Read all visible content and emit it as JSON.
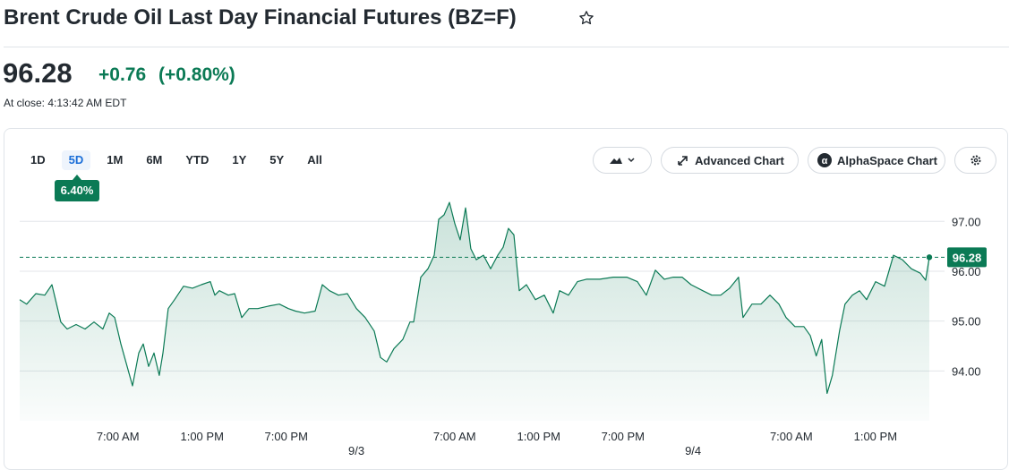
{
  "header": {
    "title": "Brent Crude Oil Last Day Financial Futures (BZ=F)"
  },
  "quote": {
    "price": "96.28",
    "change": "+0.76",
    "change_percent": "(+0.80%)",
    "close_time": "At close: 4:13:42 AM EDT"
  },
  "range_buttons": [
    "1D",
    "5D",
    "1M",
    "6M",
    "YTD",
    "1Y",
    "5Y",
    "All"
  ],
  "selected_range_index": 1,
  "range_change": "6.40%",
  "toolbar": {
    "advanced": "Advanced Chart",
    "alphaspace": "AlphaSpace Chart"
  },
  "chart_data": {
    "type": "line",
    "x": [
      0,
      0.5,
      1.15,
      1.79,
      2.3,
      2.55,
      2.93,
      3.38,
      4.02,
      4.66,
      5.3,
      5.93,
      6.38,
      6.77,
      7.21,
      7.66,
      8.04,
      8.49,
      8.81,
      9.19,
      9.57,
      9.95,
      10.21,
      10.59,
      11.04,
      11.68,
      12.32,
      12.95,
      13.59,
      13.91,
      14.23,
      14.87,
      15.32,
      15.83,
      16.34,
      16.97,
      17.74,
      18.51,
      19.15,
      19.66,
      20.3,
      21.06,
      21.57,
      22.08,
      22.72,
      23.36,
      24.0,
      24.63,
      25.27,
      25.72,
      26.16,
      26.68,
      27.31,
      27.82,
      28.08,
      28.59,
      29.1,
      29.55,
      29.87,
      30.25,
      30.63,
      31.02,
      31.4,
      31.78,
      32.16,
      32.55,
      33.06,
      33.57,
      34.08,
      34.46,
      34.84,
      35.23,
      35.61,
      36.12,
      36.76,
      37.4,
      38.03,
      38.48,
      39.12,
      39.76,
      40.4,
      41.35,
      42.31,
      43.27,
      44.03,
      44.67,
      45.31,
      45.95,
      46.59,
      47.22,
      47.86,
      48.69,
      49.33,
      49.97,
      50.61,
      51.24,
      51.56,
      52.2,
      52.84,
      53.48,
      54.12,
      54.63,
      55.26,
      55.9,
      56.35,
      56.78,
      57.17,
      57.55,
      57.93,
      58.44,
      58.83,
      59.35,
      59.86,
      60.37,
      61.01,
      61.65,
      62.29,
      62.92,
      63.56,
      64.2,
      64.58,
      64.84
    ],
    "series": [
      {
        "color": "#0b7a55",
        "values": [
          95.43,
          95.34,
          95.55,
          95.52,
          95.73,
          95.43,
          94.98,
          94.84,
          94.93,
          94.84,
          94.98,
          94.84,
          95.16,
          95.07,
          94.54,
          94.09,
          93.7,
          94.36,
          94.54,
          94.09,
          94.36,
          93.91,
          94.36,
          95.25,
          95.43,
          95.7,
          95.66,
          95.73,
          95.79,
          95.52,
          95.61,
          95.52,
          95.55,
          95.07,
          95.25,
          95.25,
          95.3,
          95.34,
          95.25,
          95.2,
          95.16,
          95.2,
          95.73,
          95.61,
          95.52,
          95.55,
          95.25,
          95.07,
          94.8,
          94.27,
          94.18,
          94.45,
          94.63,
          94.98,
          94.98,
          95.88,
          96.05,
          96.32,
          97.04,
          97.13,
          97.38,
          96.95,
          96.63,
          97.27,
          96.45,
          96.23,
          96.32,
          96.05,
          96.32,
          96.48,
          96.86,
          96.73,
          95.61,
          95.73,
          95.43,
          95.52,
          95.16,
          95.61,
          95.52,
          95.79,
          95.84,
          95.84,
          95.88,
          95.88,
          95.79,
          95.52,
          96.02,
          95.84,
          95.88,
          95.88,
          95.73,
          95.61,
          95.52,
          95.52,
          95.66,
          95.88,
          95.07,
          95.34,
          95.34,
          95.52,
          95.34,
          95.07,
          94.89,
          94.89,
          94.71,
          94.3,
          94.63,
          93.55,
          93.91,
          94.8,
          95.34,
          95.52,
          95.61,
          95.43,
          95.79,
          95.7,
          96.32,
          96.23,
          96.05,
          95.96,
          95.82,
          96.28
        ]
      }
    ],
    "xlim": [
      0,
      64.84
    ],
    "ylim": [
      93,
      97.4
    ],
    "yticks": [
      {
        "value": 94,
        "label": "94.00"
      },
      {
        "value": 95,
        "label": "95.00"
      },
      {
        "value": 96,
        "label": "96.00"
      },
      {
        "value": 97,
        "label": "97.00"
      }
    ],
    "xticks": [
      {
        "value": 7,
        "label": "7:00 AM"
      },
      {
        "value": 13,
        "label": "1:00 PM"
      },
      {
        "value": 19,
        "label": "7:00 PM"
      },
      {
        "value": 31,
        "label": "7:00 AM"
      },
      {
        "value": 37,
        "label": "1:00 PM"
      },
      {
        "value": 43,
        "label": "7:00 PM"
      },
      {
        "value": 55,
        "label": "7:00 AM"
      },
      {
        "value": 61,
        "label": "1:00 PM"
      }
    ],
    "date_ticks": [
      {
        "value": 24,
        "label": "9/3"
      },
      {
        "value": 48,
        "label": "9/4"
      }
    ],
    "last_price": 96.28,
    "grid": true
  }
}
